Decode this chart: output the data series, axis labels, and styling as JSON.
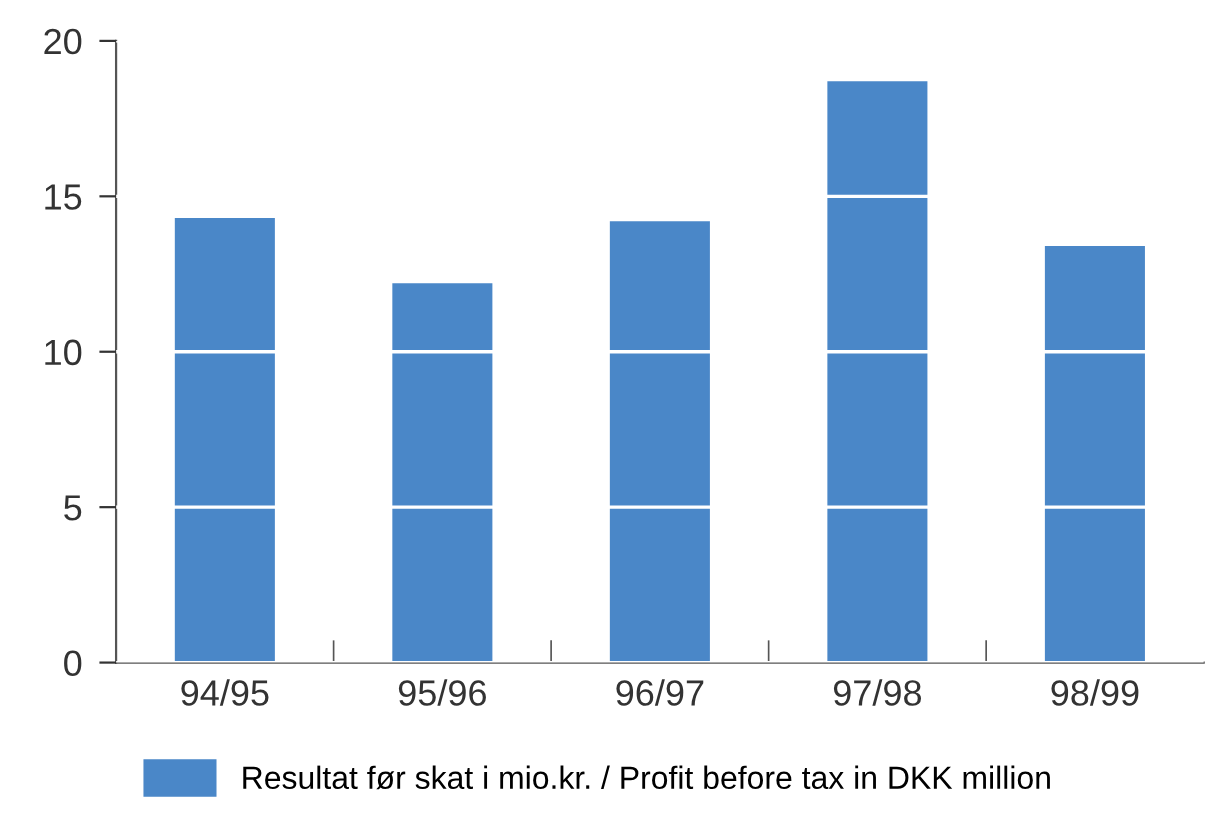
{
  "chart_data": {
    "type": "bar",
    "categories": [
      "94/95",
      "95/96",
      "96/97",
      "97/98",
      "98/99"
    ],
    "series": [
      {
        "name": "Resultat før skat i mio.kr. / Profit before tax in DKK million",
        "color": "#4a87c8",
        "values": [
          14.3,
          12.2,
          14.2,
          18.7,
          13.4
        ]
      }
    ],
    "ylim": [
      0,
      20
    ],
    "yticks": [
      0,
      5,
      10,
      15,
      20
    ],
    "grid": "y",
    "legend": "bottom"
  }
}
